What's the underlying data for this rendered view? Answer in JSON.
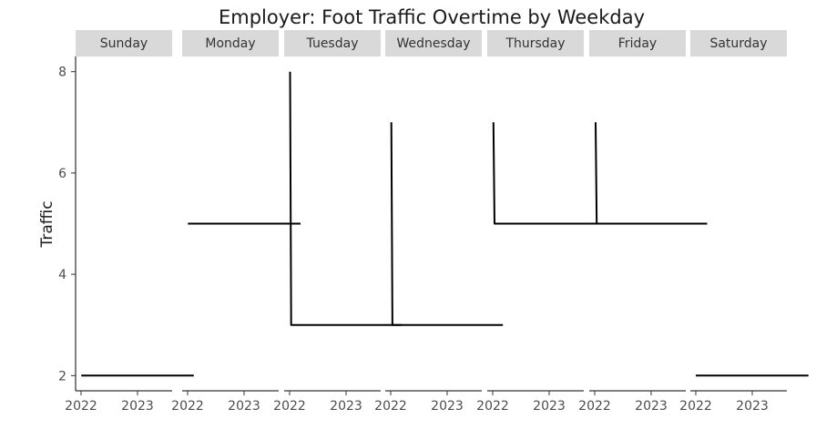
{
  "chart_data": {
    "type": "line",
    "title": "Employer: Foot Traffic Overtime by Weekday",
    "xlabel": "",
    "ylabel": "Traffic",
    "facet_by": "weekday",
    "x_ticks": [
      "2022",
      "2023"
    ],
    "y_ticks": [
      2,
      4,
      6,
      8
    ],
    "ylim": [
      1.7,
      8.3
    ],
    "grid": false,
    "series_color": "#000000",
    "strip_color": "#d9d9d9",
    "panels": [
      {
        "name": "Sunday",
        "points": [
          {
            "x": "2022-01-02",
            "y": 2
          },
          {
            "x": "2023-12-31",
            "y": 2
          }
        ]
      },
      {
        "name": "Monday",
        "points": [
          {
            "x": "2022-01-03",
            "y": 5
          },
          {
            "x": "2024-01-01",
            "y": 5
          }
        ]
      },
      {
        "name": "Tuesday",
        "points": [
          {
            "x": "2022-01-04",
            "y": 8
          },
          {
            "x": "2022-01-11",
            "y": 3
          },
          {
            "x": "2023-12-26",
            "y": 3
          }
        ]
      },
      {
        "name": "Wednesday",
        "points": [
          {
            "x": "2022-01-05",
            "y": 7
          },
          {
            "x": "2022-01-12",
            "y": 3
          },
          {
            "x": "2023-12-27",
            "y": 3
          }
        ]
      },
      {
        "name": "Thursday",
        "points": [
          {
            "x": "2022-01-06",
            "y": 7
          },
          {
            "x": "2022-01-13",
            "y": 5
          },
          {
            "x": "2023-12-28",
            "y": 5
          }
        ]
      },
      {
        "name": "Friday",
        "points": [
          {
            "x": "2022-01-07",
            "y": 7
          },
          {
            "x": "2022-01-14",
            "y": 5
          },
          {
            "x": "2023-12-29",
            "y": 5
          }
        ]
      },
      {
        "name": "Saturday",
        "points": [
          {
            "x": "2022-01-01",
            "y": 2
          },
          {
            "x": "2023-12-30",
            "y": 2
          }
        ]
      }
    ]
  }
}
